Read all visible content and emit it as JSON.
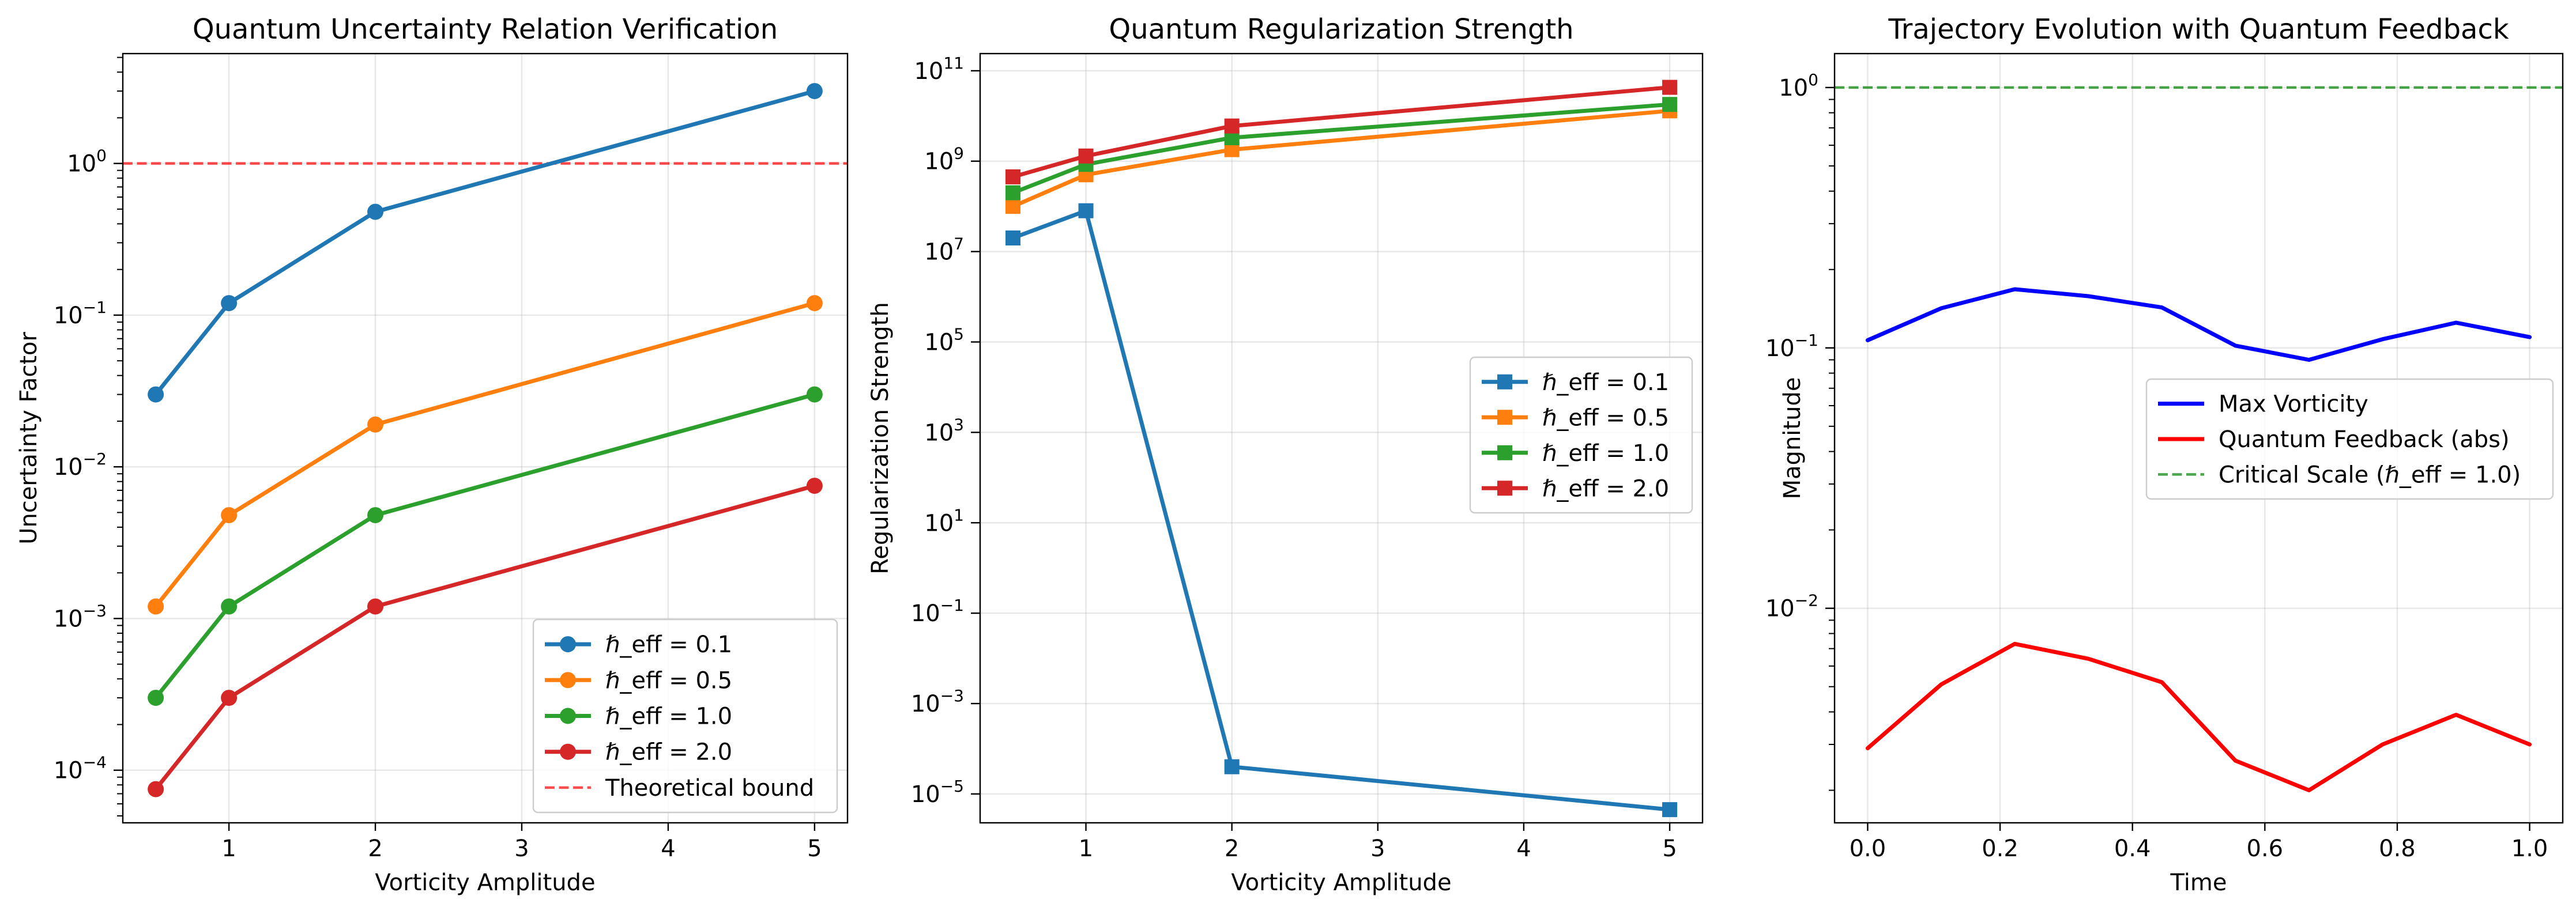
{
  "figure": {
    "background": "#ffffff"
  },
  "chart_data": [
    {
      "type": "line",
      "title": "Quantum Uncertainty Relation Verification",
      "xlabel": "Vorticity Amplitude",
      "ylabel": "Uncertainty Factor",
      "xscale": "linear",
      "yscale": "log",
      "xlim": [
        0.275,
        5.225
      ],
      "ylim": [
        4.5e-05,
        5.3
      ],
      "xticks": [
        1,
        2,
        3,
        4,
        5
      ],
      "xtick_labels": [
        "1",
        "2",
        "3",
        "4",
        "5"
      ],
      "yticks": [
        0.0001,
        0.001,
        0.01,
        0.1,
        1
      ],
      "ytick_labels": [
        {
          "base": "10",
          "exp": "−4"
        },
        {
          "base": "10",
          "exp": "−3"
        },
        {
          "base": "10",
          "exp": "−2"
        },
        {
          "base": "10",
          "exp": "−1"
        },
        {
          "base": "10",
          "exp": "0"
        }
      ],
      "grid": true,
      "legend_position": "lower right",
      "x": [
        0.5,
        1,
        2,
        5
      ],
      "series": [
        {
          "name": "ℏ_eff = 0.1",
          "color": "#1f77b4",
          "marker": "circle",
          "values": [
            0.03,
            0.12,
            0.48,
            3.0
          ]
        },
        {
          "name": "ℏ_eff = 0.5",
          "color": "#ff7f0e",
          "marker": "circle",
          "values": [
            0.0012,
            0.0048,
            0.019,
            0.12
          ]
        },
        {
          "name": "ℏ_eff = 1.0",
          "color": "#2ca02c",
          "marker": "circle",
          "values": [
            0.0003,
            0.0012,
            0.0048,
            0.03
          ]
        },
        {
          "name": "ℏ_eff = 2.0",
          "color": "#d62728",
          "marker": "circle",
          "values": [
            7.5e-05,
            0.0003,
            0.0012,
            0.0075
          ]
        }
      ],
      "reference_lines": [
        {
          "name": "Theoretical bound",
          "y": 1.0,
          "color": "#ff0000",
          "style": "dashed"
        }
      ]
    },
    {
      "type": "line",
      "title": "Quantum Regularization Strength",
      "xlabel": "Vorticity Amplitude",
      "ylabel": "Regularization Strength",
      "xscale": "linear",
      "yscale": "log",
      "xlim": [
        0.275,
        5.225
      ],
      "ylim": [
        2.3e-06,
        240000000000.0
      ],
      "xticks": [
        1,
        2,
        3,
        4,
        5
      ],
      "xtick_labels": [
        "1",
        "2",
        "3",
        "4",
        "5"
      ],
      "yticks": [
        1e-05,
        0.001,
        0.1,
        10.0,
        1000.0,
        100000.0,
        10000000.0,
        1000000000.0,
        100000000000.0
      ],
      "ytick_labels": [
        {
          "base": "10",
          "exp": "−5"
        },
        {
          "base": "10",
          "exp": "−3"
        },
        {
          "base": "10",
          "exp": "−1"
        },
        {
          "base": "10",
          "exp": "1"
        },
        {
          "base": "10",
          "exp": "3"
        },
        {
          "base": "10",
          "exp": "5"
        },
        {
          "base": "10",
          "exp": "7"
        },
        {
          "base": "10",
          "exp": "9"
        },
        {
          "base": "10",
          "exp": "11"
        }
      ],
      "grid": true,
      "legend_position": "center right",
      "x": [
        0.5,
        1,
        2,
        5
      ],
      "series": [
        {
          "name": "ℏ_eff = 0.1",
          "color": "#1f77b4",
          "marker": "square",
          "values": [
            20000000.0,
            80000000.0,
            4e-05,
            4.5e-06
          ]
        },
        {
          "name": "ℏ_eff = 0.5",
          "color": "#ff7f0e",
          "marker": "square",
          "values": [
            100000000.0,
            500000000.0,
            1800000000.0,
            13000000000.0
          ]
        },
        {
          "name": "ℏ_eff = 1.0",
          "color": "#2ca02c",
          "marker": "square",
          "values": [
            200000000.0,
            850000000.0,
            3300000000.0,
            18000000000.0
          ]
        },
        {
          "name": "ℏ_eff = 2.0",
          "color": "#d62728",
          "marker": "square",
          "values": [
            450000000.0,
            1300000000.0,
            6000000000.0,
            43000000000.0
          ]
        }
      ],
      "reference_lines": []
    },
    {
      "type": "line",
      "title": "Trajectory Evolution with Quantum Feedback",
      "xlabel": "Time",
      "ylabel": "Magnitude",
      "xscale": "linear",
      "yscale": "log",
      "xlim": [
        -0.05,
        1.05
      ],
      "ylim": [
        0.0015,
        1.35
      ],
      "xticks": [
        0,
        0.2,
        0.4,
        0.6,
        0.8,
        1.0
      ],
      "xtick_labels": [
        "0.0",
        "0.2",
        "0.4",
        "0.6",
        "0.8",
        "1.0"
      ],
      "yticks": [
        0.01,
        0.1,
        1.0
      ],
      "ytick_labels": [
        {
          "base": "10",
          "exp": "−2"
        },
        {
          "base": "10",
          "exp": "−1"
        },
        {
          "base": "10",
          "exp": "0"
        }
      ],
      "grid": true,
      "legend_position": "center right",
      "x": [
        0,
        0.1111,
        0.2222,
        0.3333,
        0.4444,
        0.5556,
        0.6667,
        0.7778,
        0.8889,
        1.0
      ],
      "series": [
        {
          "name": "Max Vorticity",
          "color": "#0000ff",
          "marker": "none",
          "values": [
            0.107,
            0.142,
            0.168,
            0.158,
            0.143,
            0.102,
            0.09,
            0.108,
            0.125,
            0.11
          ]
        },
        {
          "name": "Quantum Feedback (abs)",
          "color": "#ff0000",
          "marker": "none",
          "values": [
            0.0029,
            0.0051,
            0.0073,
            0.0064,
            0.0052,
            0.0026,
            0.002,
            0.003,
            0.0039,
            0.003
          ]
        }
      ],
      "reference_lines": [
        {
          "name": "Critical Scale (ℏ_eff = 1.0)",
          "y": 1.0,
          "color": "#008000",
          "style": "dashed"
        }
      ]
    }
  ]
}
